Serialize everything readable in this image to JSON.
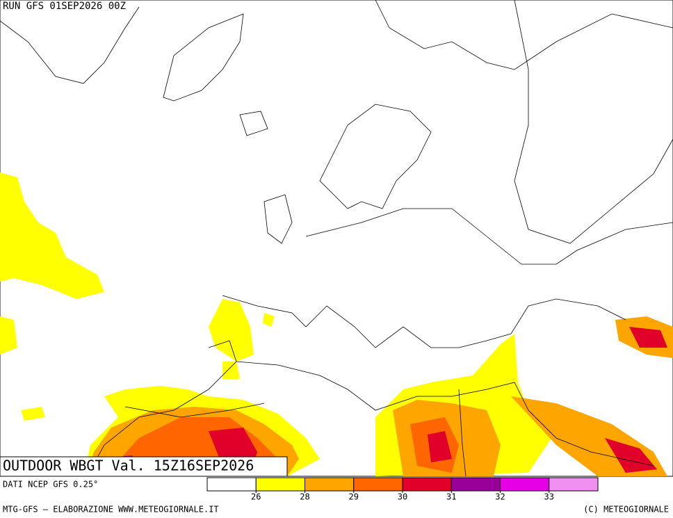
{
  "header": {
    "run": "RUN GFS 01SEP2026 00Z"
  },
  "map": {
    "title": "OUTDOOR WBGT Val. 15Z16SEP2026"
  },
  "footer": {
    "source": "DATI NCEP GFS 0.25°",
    "credit": "MTG-GFS — ELABORAZIONE WWW.METEOGIORNALE.IT",
    "copyright": "(C) METEOGIORNALE"
  },
  "legend": {
    "colors": [
      "#ffffff",
      "#ffff00",
      "#ffa500",
      "#ff6600",
      "#e0002a",
      "#990099",
      "#e600e6",
      "#f090f0"
    ],
    "ticks": [
      26,
      28,
      29,
      30,
      31,
      32,
      33
    ]
  }
}
